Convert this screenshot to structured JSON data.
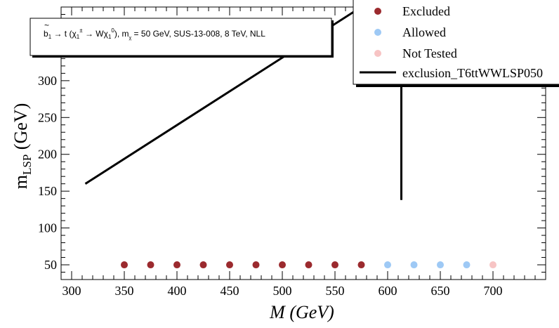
{
  "chart_data": {
    "type": "scatter",
    "xlabel": "M (GeV)",
    "ylabel_main": "m",
    "ylabel_sub": "LSP",
    "ylabel_unit": " (GeV)",
    "xlim": [
      290,
      750
    ],
    "ylim": [
      30,
      400
    ],
    "xticks": [
      300,
      350,
      400,
      450,
      500,
      550,
      600,
      650,
      700
    ],
    "yticks": [
      50,
      100,
      150,
      200,
      250,
      300,
      350
    ],
    "grid": false,
    "legend_position": "top-right",
    "info_box": {
      "process": "b̃₁ → t (χ̃₁^± → W χ̃₁⁰), m_χ̃₁⁰ = 50 GeV, SUS-13-008, 8 TeV, NLL"
    },
    "colors": {
      "excluded": "#9b2a2e",
      "allowed": "#9ec9f5",
      "not_tested": "#f7c4c4",
      "exclusion_line": "#000000"
    },
    "series": [
      {
        "name": "Excluded",
        "kind": "points",
        "color_key": "excluded",
        "x": [
          350,
          375,
          400,
          425,
          450,
          475,
          500,
          525,
          550,
          575
        ],
        "y": [
          50,
          50,
          50,
          50,
          50,
          50,
          50,
          50,
          50,
          50
        ]
      },
      {
        "name": "Allowed",
        "kind": "points",
        "color_key": "allowed",
        "x": [
          600,
          625,
          650,
          675
        ],
        "y": [
          50,
          50,
          50,
          50
        ]
      },
      {
        "name": "Not Tested",
        "kind": "points",
        "color_key": "not_tested",
        "x": [
          700
        ],
        "y": [
          50
        ]
      },
      {
        "name": "exclusion_T6ttWWLSP050",
        "kind": "line",
        "color_key": "exclusion_line",
        "x": [
          313,
          575,
          612,
          613,
          613
        ],
        "y": [
          160,
          400,
          400,
          300,
          138
        ]
      }
    ]
  }
}
